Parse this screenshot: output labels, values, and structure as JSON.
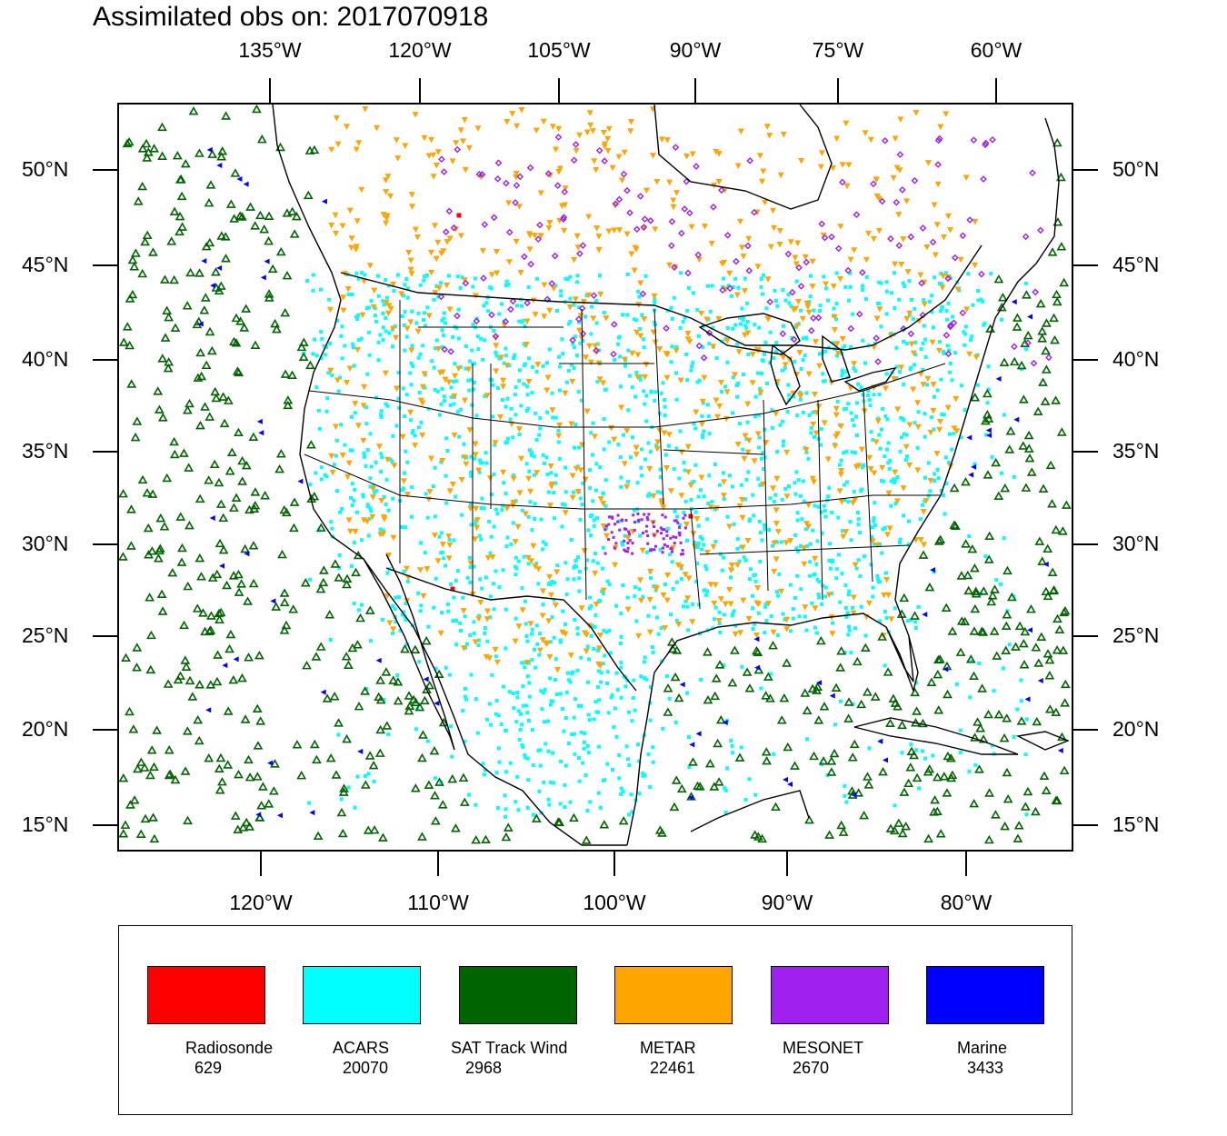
{
  "title": "Assimilated obs on: 2017070918",
  "top_axis_labels": [
    "135°W",
    "120°W",
    "105°W",
    "90°W",
    "75°W",
    "60°W"
  ],
  "bottom_axis_labels": [
    "120°W",
    "110°W",
    "100°W",
    "90°W",
    "80°W"
  ],
  "lat_labels": [
    "50°N",
    "45°N",
    "40°N",
    "35°N",
    "30°N",
    "25°N",
    "20°N",
    "15°N"
  ],
  "legend": [
    {
      "name": "Radiosonde",
      "count": "629",
      "color": "#ff0000"
    },
    {
      "name": "ACARS",
      "count": "20070",
      "color": "#00ffff"
    },
    {
      "name": "SAT Track Wind",
      "count": "2968",
      "color": "#006400"
    },
    {
      "name": "METAR",
      "count": "22461",
      "color": "#ffa500"
    },
    {
      "name": "MESONET",
      "count": "2670",
      "color": "#a020f0"
    },
    {
      "name": "Marine",
      "count": "3433",
      "color": "#0000ff"
    }
  ]
}
